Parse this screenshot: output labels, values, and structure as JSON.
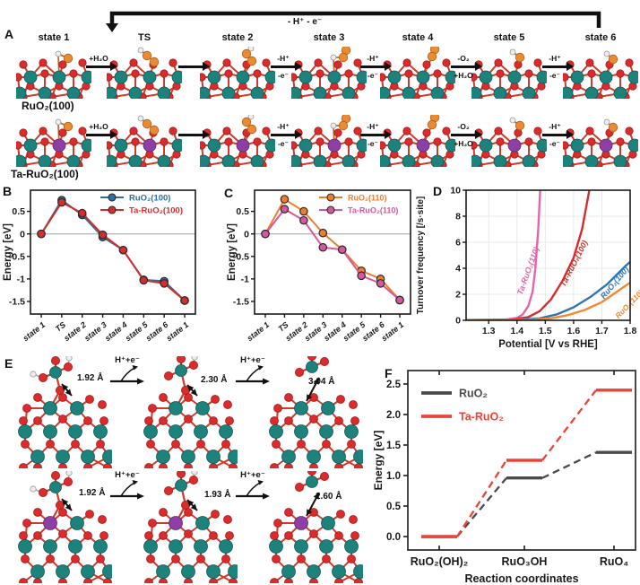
{
  "colors": {
    "ru_atom": "#1d827c",
    "o_atom": "#dc2b2b",
    "ads_o_atom": "#ea8b33",
    "h_atom": "#ededed",
    "ta_atom": "#8d3fa5",
    "bond": "#cf3a2a",
    "axis": "#1a1a1a",
    "zero_line": "#bbbbbb",
    "grid": "#e9e9e9"
  },
  "panel_labels": {
    "b": "B",
    "c": "C",
    "d": "D",
    "f": "F"
  },
  "panel_a": {
    "label": "A",
    "loop_label": "- H⁺ - e⁻",
    "states": [
      "state 1",
      "TS",
      "state 2",
      "state 3",
      "state 4",
      "state 5",
      "state 6"
    ],
    "row_labels": [
      "RuO₂(100)",
      "Ta-RuO₂(100)"
    ],
    "arrows": [
      {
        "top": "+H₂O",
        "bottom": ""
      },
      {
        "top": "",
        "bottom": ""
      },
      {
        "top": "-H⁺",
        "bottom": "-e⁻"
      },
      {
        "top": "-H⁺",
        "bottom": "-e⁻"
      },
      {
        "top": "-O₂",
        "bottom": "+H₂O"
      },
      {
        "top": "-H⁺",
        "bottom": "-e⁻"
      }
    ]
  },
  "panel_e": {
    "label": "E",
    "arrow_label": "H⁺+e⁻",
    "bond_lengths": [
      [
        "1.92 Å",
        "2.30 Å",
        "3.04 Å"
      ],
      [
        "1.92 Å",
        "1.93 Å",
        "2.60 Å"
      ]
    ]
  },
  "chart_data": [
    {
      "id": "B",
      "type": "line",
      "categories": [
        "state 1",
        "TS",
        "state 2",
        "state 3",
        "state 4",
        "state 5",
        "state 6",
        "state 1"
      ],
      "series": [
        {
          "name": "RuO₂(100)",
          "color": "#2f6f9f",
          "values": [
            0,
            0.75,
            0.42,
            -0.07,
            -0.36,
            -1.02,
            -1.05,
            -1.48
          ]
        },
        {
          "name": "Ta-RuO₂(100)",
          "color": "#d42d2c",
          "values": [
            0,
            0.7,
            0.46,
            -0.02,
            -0.36,
            -1.03,
            -1.1,
            -1.48
          ]
        }
      ],
      "ylabel": "Energy [eV]",
      "yticks": [
        0.5,
        0,
        -0.5,
        -1,
        -1.5
      ],
      "ytick_labels": [
        "0.5",
        "0",
        "-0.5",
        "-1",
        "-1.5"
      ],
      "ylim": [
        -1.78,
        0.97
      ],
      "zero_line": true,
      "legend_position": "top-right"
    },
    {
      "id": "C",
      "type": "line",
      "categories": [
        "state 1",
        "TS",
        "state 2",
        "state 3",
        "state 4",
        "state 5",
        "state 6",
        "state 1"
      ],
      "series": [
        {
          "name": "RuO₂(110)",
          "color": "#ef7d2e",
          "values": [
            0,
            0.77,
            0.5,
            0.02,
            -0.35,
            -0.82,
            -1.0,
            -1.47
          ]
        },
        {
          "name": "Ta-RuO₂(110)",
          "color": "#d4589f",
          "values": [
            0,
            0.55,
            0.3,
            -0.3,
            -0.35,
            -0.93,
            -1.1,
            -1.47
          ]
        }
      ],
      "ylabel": "Energy [eV]",
      "yticks": [
        0.5,
        0,
        -0.5,
        -1,
        -1.5
      ],
      "ytick_labels": [
        "0.5",
        "0",
        "-0.5",
        "-1",
        "-1.5"
      ],
      "ylim": [
        -1.78,
        0.97
      ],
      "zero_line": true,
      "legend_position": "top-right"
    },
    {
      "id": "D",
      "type": "line",
      "xy": true,
      "series": [
        {
          "name": "Ta-RuO₂(110)",
          "color": "#e763ab",
          "x": [
            1.2,
            1.36,
            1.4,
            1.42,
            1.44,
            1.455,
            1.465,
            1.475,
            1.483
          ],
          "y": [
            0.02,
            0.06,
            0.18,
            0.45,
            1.1,
            2.2,
            4.0,
            7.0,
            10.5
          ]
        },
        {
          "name": "Ta-RuO₂(100)",
          "color": "#d42d2c",
          "x": [
            1.2,
            1.38,
            1.44,
            1.48,
            1.52,
            1.56,
            1.6,
            1.63,
            1.66
          ],
          "y": [
            0.02,
            0.06,
            0.25,
            0.7,
            1.6,
            3.0,
            4.8,
            7.0,
            10.5
          ]
        },
        {
          "name": "RuO₂(100)",
          "color": "#2e75b6",
          "x": [
            1.2,
            1.4,
            1.48,
            1.54,
            1.6,
            1.66,
            1.72,
            1.78,
            1.8
          ],
          "y": [
            0.01,
            0.04,
            0.15,
            0.45,
            1.0,
            1.8,
            2.8,
            4.1,
            4.5
          ]
        },
        {
          "name": "RuO₂(110)",
          "color": "#f5882e",
          "x": [
            1.2,
            1.44,
            1.52,
            1.58,
            1.64,
            1.7,
            1.76,
            1.8
          ],
          "y": [
            0.01,
            0.04,
            0.15,
            0.4,
            0.8,
            1.4,
            2.3,
            2.9
          ]
        }
      ],
      "xlabel": "Potential [V vs RHE]",
      "ylabel": "Turnover frequency [/s·site]",
      "xlim": [
        1.22,
        1.8
      ],
      "xticks": [
        1.3,
        1.4,
        1.5,
        1.6,
        1.7,
        1.8
      ],
      "xtick_labels": [
        "1.3",
        "1.4",
        "1.5",
        "1.6",
        "1.7",
        "1.8"
      ],
      "yticks": [
        0,
        2,
        4,
        6,
        8,
        10
      ],
      "ytick_labels": [
        "0",
        "2",
        "4",
        "6",
        "8",
        "10"
      ],
      "ylim": [
        0,
        10
      ],
      "grid": true
    },
    {
      "id": "F",
      "type": "step",
      "categories": [
        "RuO₂(OH)₂",
        "RuO₃OH",
        "RuO₄"
      ],
      "series": [
        {
          "name": "RuO₂",
          "color": "#4a4a4a",
          "values": [
            0.0,
            0.96,
            1.38
          ]
        },
        {
          "name": "Ta-RuO₂",
          "color": "#ee4237",
          "values": [
            0.0,
            1.25,
            2.4
          ]
        }
      ],
      "xlabel": "Reaction coordinates",
      "ylabel": "Energy [eV]",
      "yticks": [
        0,
        0.5,
        1,
        1.5,
        2,
        2.5
      ],
      "ytick_labels": [
        "0.0",
        "0.5",
        "1.0",
        "1.5",
        "2.0",
        "2.5"
      ],
      "ylim": [
        -0.22,
        2.72
      ],
      "legend_position": "top-left"
    }
  ]
}
